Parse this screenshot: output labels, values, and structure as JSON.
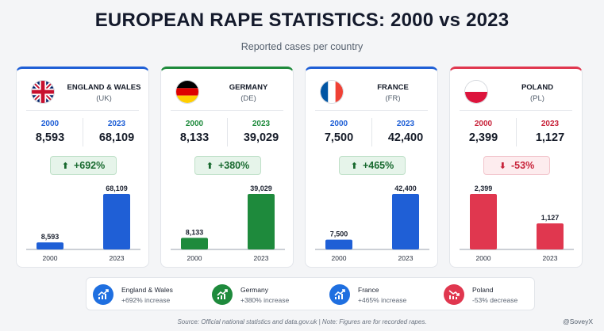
{
  "title": "EUROPEAN RAPE STATISTICS: 2000 vs 2023",
  "subtitle": "Reported cases per country",
  "chart_data": {
    "type": "bar",
    "categories": [
      "2000",
      "2023"
    ],
    "panels": [
      {
        "country": "ENGLAND & WALES",
        "code": "(UK)",
        "flag": "uk-flag",
        "color": "#1f5fd6",
        "year_color": "#1f5fd6",
        "y2000": 8593,
        "y2023": 68109,
        "label2000": "8,593",
        "label2023": "68,109",
        "change": "+692%",
        "direction": "up"
      },
      {
        "country": "GERMANY",
        "code": "(DE)",
        "flag": "germany-flag",
        "color": "#1e8a3c",
        "year_color": "#1e8a3c",
        "y2000": 8133,
        "y2023": 39029,
        "label2000": "8,133",
        "label2023": "39,029",
        "change": "+380%",
        "direction": "up"
      },
      {
        "country": "FRANCE",
        "code": "(FR)",
        "flag": "france-flag",
        "color": "#1f5fd6",
        "year_color": "#1f5fd6",
        "y2000": 7500,
        "y2023": 42400,
        "label2000": "7,500",
        "label2023": "42,400",
        "change": "+465%",
        "direction": "up"
      },
      {
        "country": "POLAND",
        "code": "(PL)",
        "flag": "poland-flag",
        "color": "#e0374f",
        "year_color": "#c8243b",
        "y2000": 2399,
        "y2023": 1127,
        "label2000": "2,399",
        "label2023": "1,127",
        "change": "-53%",
        "direction": "down"
      }
    ]
  },
  "legend": [
    {
      "name": "England & Wales",
      "desc": "+692% increase",
      "color": "#1f6fe0",
      "icon": "trend-up-icon"
    },
    {
      "name": "Germany",
      "desc": "+380% increase",
      "color": "#1e8a3c",
      "icon": "trend-up-icon"
    },
    {
      "name": "France",
      "desc": "+465% increase",
      "color": "#1f6fe0",
      "icon": "trend-up-icon"
    },
    {
      "name": "Poland",
      "desc": "-53% decrease",
      "color": "#e0374f",
      "icon": "trend-down-icon"
    }
  ],
  "source": "Source: Official national statistics and data.gov.uk   |   Note: Figures are for recorded rapes.",
  "credit": "@SoveyX"
}
